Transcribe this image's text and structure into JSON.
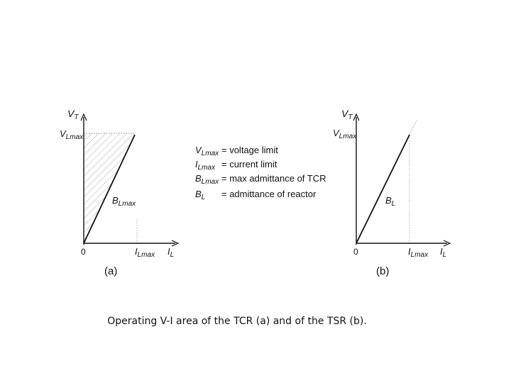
{
  "panel_a": {
    "axis_y": {
      "main": "V",
      "sub": "T"
    },
    "axis_x": {
      "main": "I",
      "sub": "L"
    },
    "vmax": {
      "main": "V",
      "sub": "Lmax"
    },
    "imax": {
      "main": "I",
      "sub": "Lmax"
    },
    "origin": "0",
    "line": {
      "main": "B",
      "sub": "Lmax"
    },
    "caption": "(a)"
  },
  "panel_b": {
    "axis_y": {
      "main": "V",
      "sub": "T"
    },
    "axis_x": {
      "main": "I",
      "sub": "L"
    },
    "vmax": {
      "main": "V",
      "sub": "Lmax"
    },
    "imax": {
      "main": "I",
      "sub": "Lmax"
    },
    "origin": "0",
    "line": {
      "main": "B",
      "sub": "L"
    },
    "caption": "(b)"
  },
  "legend": [
    {
      "sym": "V",
      "sub": "Lmax",
      "desc": "= voltage limit"
    },
    {
      "sym": "I",
      "sub": "Lmax",
      "desc": "= current limit"
    },
    {
      "sym": "B",
      "sub": "Lmax",
      "desc": "= max admittance of TCR"
    },
    {
      "sym": "B",
      "sub": "L",
      "desc": "= admittance of reactor"
    }
  ],
  "caption": "Operating V-I area of the TCR (a) and of the TSR (b)."
}
